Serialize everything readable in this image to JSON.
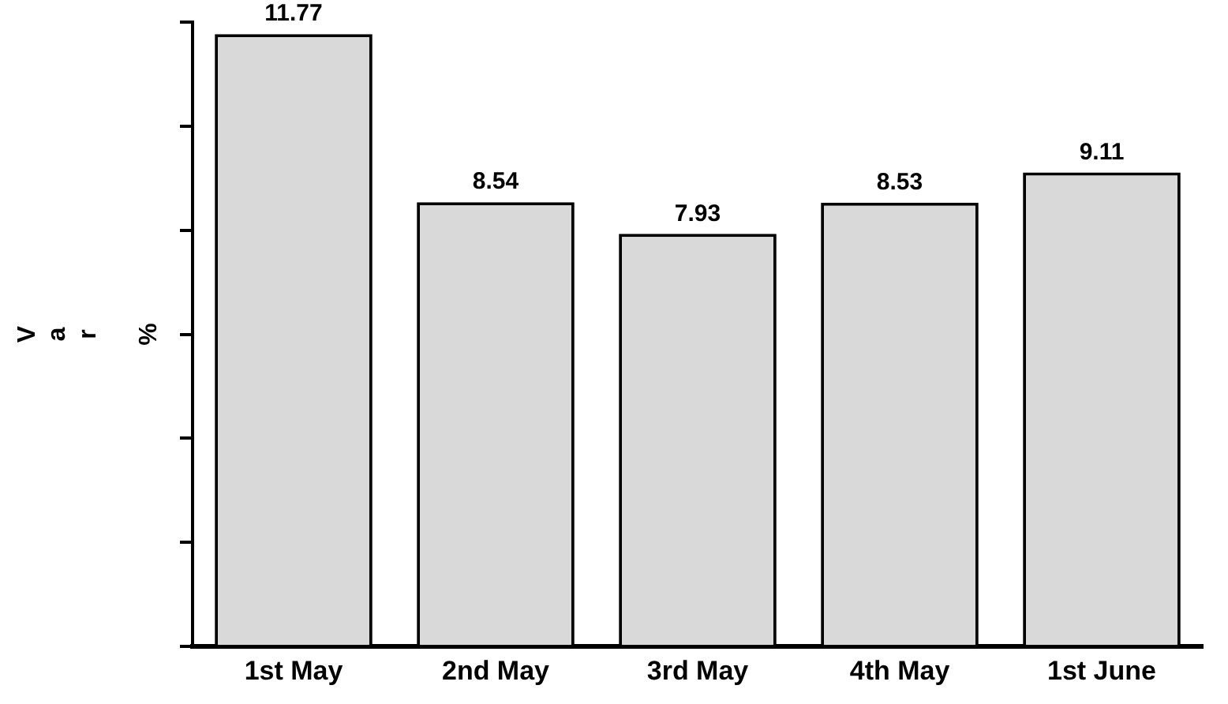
{
  "chart_data": {
    "type": "bar",
    "ylabel": "Var %",
    "categories": [
      "1st May",
      "2nd May",
      "3rd May",
      "4th May",
      "1st June"
    ],
    "values": [
      11.77,
      8.54,
      7.93,
      8.53,
      9.11
    ],
    "color": "#d9d9d9",
    "tick_labels": "x",
    "grid": false,
    "legend": false,
    "data_labels": true
  }
}
